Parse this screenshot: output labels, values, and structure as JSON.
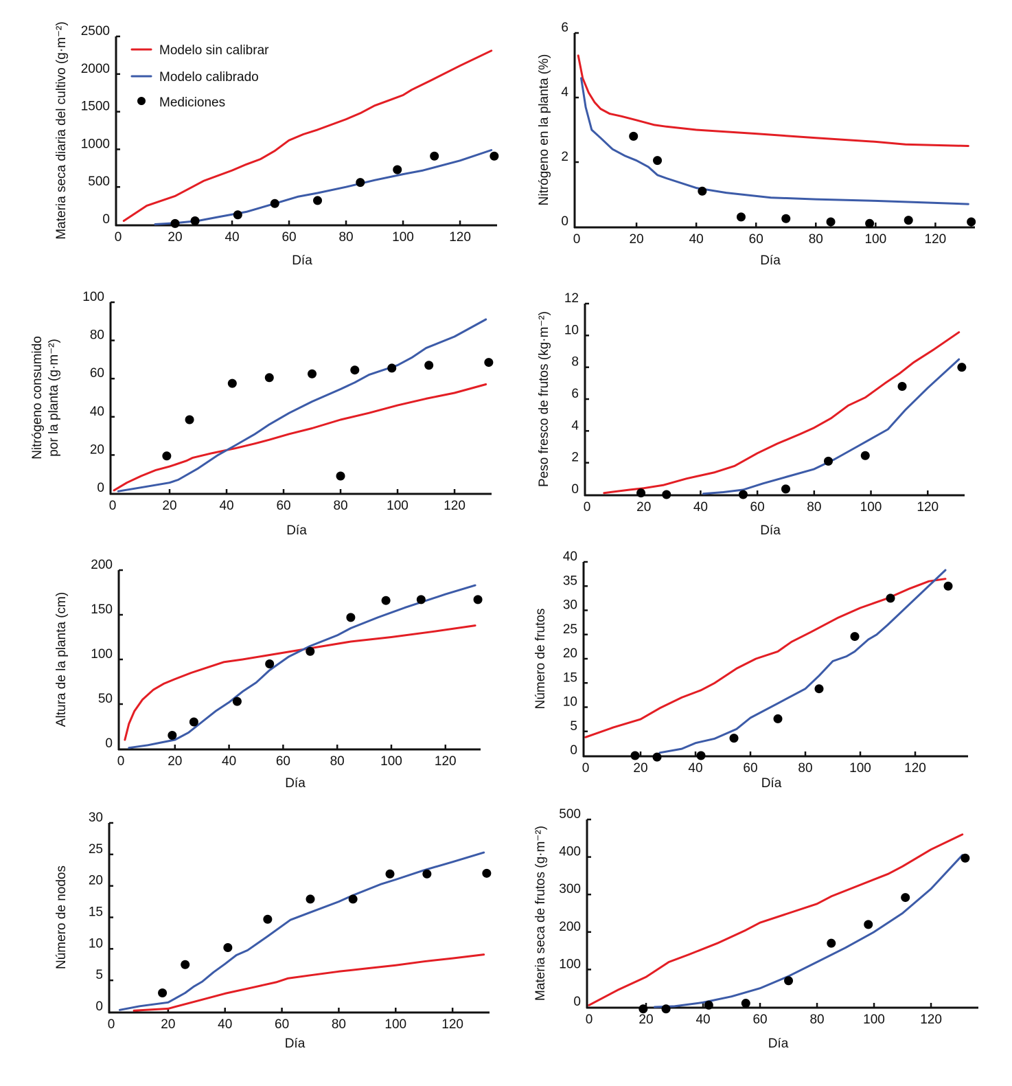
{
  "colors": {
    "uncalibrated": "#e31e24",
    "calibrated": "#3c5ba8",
    "measurements": "#000000"
  },
  "legend": {
    "position": "top-left of first panel",
    "items": [
      {
        "key": "uncalibrated",
        "label": "Modelo sin calibrar",
        "kind": "line"
      },
      {
        "key": "calibrated",
        "label": "Modelo calibrado",
        "kind": "line"
      },
      {
        "key": "measurements",
        "label": "Mediciones",
        "kind": "point"
      }
    ]
  },
  "chart_data": [
    {
      "id": "materia-seca-cultivo",
      "type": "line",
      "title": "",
      "xlabel": "Día",
      "ylabel": "Materia seca diaria del cultivo (g·m⁻²)",
      "xlim": [
        0,
        133
      ],
      "ylim": [
        0,
        2500
      ],
      "xticks": [
        0,
        20,
        40,
        60,
        80,
        100,
        120
      ],
      "yticks": [
        0,
        500,
        1000,
        1500,
        2000,
        2500
      ],
      "series": [
        {
          "name": "Modelo sin calibrar",
          "key": "uncalibrated",
          "x": [
            2,
            10,
            20,
            25,
            30,
            40,
            45,
            50,
            55,
            60,
            65,
            70,
            80,
            85,
            90,
            95,
            100,
            103,
            110,
            120,
            131
          ],
          "y": [
            50,
            250,
            380,
            480,
            580,
            720,
            800,
            870,
            980,
            1120,
            1200,
            1260,
            1400,
            1480,
            1580,
            1650,
            1720,
            1790,
            1920,
            2110,
            2310
          ]
        },
        {
          "name": "Modelo calibrado",
          "key": "calibrated",
          "x": [
            13,
            20,
            28,
            35,
            45,
            55,
            63,
            70,
            80,
            90,
            100,
            107,
            120,
            131
          ],
          "y": [
            5,
            20,
            50,
            100,
            170,
            280,
            370,
            420,
            500,
            590,
            670,
            720,
            850,
            990
          ]
        },
        {
          "name": "Mediciones",
          "key": "measurements",
          "kind": "scatter",
          "x": [
            20,
            27,
            42,
            55,
            70,
            85,
            98,
            111,
            132
          ],
          "y": [
            15,
            50,
            130,
            280,
            320,
            560,
            730,
            910,
            910
          ]
        }
      ]
    },
    {
      "id": "nitrogeno-planta",
      "type": "line",
      "title": "",
      "xlabel": "Día",
      "ylabel": "Nitrógeno en la planta (%)",
      "xlim": [
        0,
        133
      ],
      "ylim": [
        0,
        6
      ],
      "xticks": [
        0,
        20,
        40,
        60,
        80,
        100,
        120
      ],
      "yticks": [
        0,
        2,
        4,
        6
      ],
      "series": [
        {
          "name": "Modelo sin calibrar",
          "key": "uncalibrated",
          "x": [
            0.5,
            2,
            4,
            6,
            8,
            11,
            15,
            20,
            26,
            30,
            40,
            60,
            80,
            100,
            110,
            131
          ],
          "y": [
            5.3,
            4.6,
            4.15,
            3.85,
            3.65,
            3.5,
            3.42,
            3.3,
            3.15,
            3.1,
            3.0,
            2.88,
            2.75,
            2.63,
            2.55,
            2.5
          ]
        },
        {
          "name": "Modelo calibrado",
          "key": "calibrated",
          "x": [
            1.5,
            3,
            5,
            8,
            12,
            16,
            20,
            24,
            27,
            30,
            40,
            50,
            65,
            80,
            100,
            131
          ],
          "y": [
            4.6,
            3.7,
            3.0,
            2.75,
            2.4,
            2.2,
            2.05,
            1.85,
            1.6,
            1.5,
            1.2,
            1.05,
            0.9,
            0.85,
            0.8,
            0.7
          ]
        },
        {
          "name": "Mediciones",
          "key": "measurements",
          "kind": "scatter",
          "x": [
            19,
            27,
            42,
            55,
            70,
            85,
            98,
            111,
            132
          ],
          "y": [
            2.8,
            2.05,
            1.1,
            0.3,
            0.25,
            0.15,
            0.1,
            0.2,
            0.15
          ]
        }
      ]
    },
    {
      "id": "nitrogeno-consumido",
      "type": "line",
      "title": "",
      "xlabel": "Día",
      "ylabel": [
        "Nitrógeno consumido",
        "por la planta (g·m⁻²)"
      ],
      "xlim": [
        0,
        133
      ],
      "ylim": [
        0,
        100
      ],
      "xticks": [
        0,
        20,
        40,
        60,
        80,
        100,
        120
      ],
      "yticks": [
        0,
        20,
        40,
        60,
        80,
        100
      ],
      "series": [
        {
          "name": "Modelo sin calibrar",
          "key": "uncalibrated",
          "x": [
            0.5,
            5,
            10,
            15,
            20,
            26,
            28,
            35,
            43,
            50,
            55,
            62,
            70,
            80,
            90,
            100,
            110,
            120,
            131
          ],
          "y": [
            1.5,
            5.5,
            9,
            12,
            14,
            17,
            18.5,
            21,
            23.5,
            26,
            28,
            31,
            34,
            38.5,
            42,
            46,
            49.5,
            52.5,
            57
          ]
        },
        {
          "name": "Modelo calibrado",
          "key": "calibrated",
          "x": [
            2,
            10,
            20,
            23,
            30,
            37,
            43,
            50,
            55,
            62,
            70,
            80,
            85,
            90,
            100,
            105,
            110,
            120,
            131
          ],
          "y": [
            1,
            3,
            5.5,
            7,
            13,
            20,
            25,
            31,
            36,
            42,
            48,
            54.5,
            58,
            62,
            67,
            71,
            76,
            82,
            91
          ]
        },
        {
          "name": "Mediciones",
          "key": "measurements",
          "kind": "scatter",
          "x": [
            19,
            27,
            42,
            55,
            70,
            80,
            85,
            98,
            111,
            132
          ],
          "y": [
            19.5,
            38.5,
            57.5,
            60.5,
            62.5,
            9,
            64.5,
            65.5,
            67,
            68.5
          ]
        }
      ]
    },
    {
      "id": "peso-fresco-frutos",
      "type": "line",
      "title": "",
      "xlabel": "Día",
      "ylabel": "Peso fresco de frutos (kg·m⁻²)",
      "xlim": [
        0,
        133
      ],
      "ylim": [
        0,
        12
      ],
      "xticks": [
        0,
        20,
        40,
        60,
        80,
        100,
        120
      ],
      "yticks": [
        0,
        2,
        4,
        6,
        8,
        10,
        12
      ],
      "series": [
        {
          "name": "Modelo sin calibrar",
          "key": "uncalibrated",
          "x": [
            6,
            15,
            20,
            27,
            35,
            45,
            52,
            60,
            67,
            75,
            80,
            86,
            92,
            98,
            105,
            110,
            115,
            122,
            131
          ],
          "y": [
            0.1,
            0.3,
            0.4,
            0.6,
            1.0,
            1.4,
            1.8,
            2.6,
            3.2,
            3.8,
            4.2,
            4.8,
            5.6,
            6.1,
            7.0,
            7.6,
            8.3,
            9.1,
            10.2
          ]
        },
        {
          "name": "Modelo calibrado",
          "key": "calibrated",
          "x": [
            41,
            48,
            55,
            62,
            70,
            80,
            87,
            95,
            100,
            106,
            112,
            120,
            131
          ],
          "y": [
            0.05,
            0.15,
            0.3,
            0.7,
            1.1,
            1.6,
            2.2,
            3.0,
            3.5,
            4.1,
            5.3,
            6.7,
            8.5
          ]
        },
        {
          "name": "Mediciones",
          "key": "measurements",
          "kind": "scatter",
          "x": [
            19,
            28,
            55,
            70,
            85,
            98,
            111,
            132
          ],
          "y": [
            0.1,
            0.0,
            0.0,
            0.35,
            2.1,
            2.45,
            6.8,
            8.0
          ]
        }
      ]
    },
    {
      "id": "altura-planta",
      "type": "line",
      "title": "",
      "xlabel": "Día",
      "ylabel": "Altura de la planta (cm)",
      "xlim": [
        0,
        133
      ],
      "ylim": [
        0,
        200
      ],
      "xticks": [
        0,
        20,
        40,
        60,
        80,
        100,
        120
      ],
      "yticks": [
        0,
        50,
        100,
        150,
        200
      ],
      "series": [
        {
          "name": "Modelo sin calibrar",
          "key": "uncalibrated",
          "x": [
            1.5,
            3,
            5,
            8,
            12,
            16,
            20,
            26,
            32,
            38,
            45,
            55,
            65,
            75,
            85,
            100,
            115,
            131
          ],
          "y": [
            10,
            28,
            42,
            55,
            66,
            73,
            78,
            85,
            91,
            97,
            100,
            105,
            110,
            115,
            120,
            125,
            131,
            138
          ]
        },
        {
          "name": "Modelo calibrado",
          "key": "calibrated",
          "x": [
            3,
            10,
            15,
            20,
            25,
            30,
            35,
            40,
            45,
            50,
            55,
            62,
            70,
            80,
            85,
            95,
            105,
            120,
            131
          ],
          "y": [
            1,
            4,
            7,
            10,
            18,
            30,
            42,
            52,
            64,
            74,
            88,
            103,
            115,
            127,
            135,
            147,
            158,
            173,
            183
          ]
        },
        {
          "name": "Mediciones",
          "key": "measurements",
          "kind": "scatter",
          "x": [
            19,
            27,
            43,
            55,
            70,
            85,
            98,
            111,
            132
          ],
          "y": [
            15,
            30,
            53,
            95,
            109,
            147,
            166,
            167,
            167
          ]
        }
      ]
    },
    {
      "id": "numero-frutos",
      "type": "line",
      "title": "",
      "xlabel": "Día",
      "ylabel": "Número de frutos",
      "xlim": [
        0,
        140
      ],
      "ylim": [
        0,
        40
      ],
      "xticks": [
        0,
        20,
        40,
        60,
        80,
        100,
        120
      ],
      "yticks": [
        0,
        5,
        10,
        15,
        20,
        25,
        30,
        35,
        40
      ],
      "series": [
        {
          "name": "Modelo sin calibrar",
          "key": "uncalibrated",
          "x": [
            0,
            10,
            20,
            27,
            35,
            42,
            47,
            55,
            62,
            70,
            75,
            82,
            92,
            100,
            110,
            118,
            125,
            131
          ],
          "y": [
            3.8,
            5.8,
            7.5,
            9.8,
            12,
            13.5,
            15,
            18,
            20,
            21.5,
            23.5,
            25.5,
            28.5,
            30.5,
            32.5,
            34.5,
            36,
            36.5
          ]
        },
        {
          "name": "Modelo calibrado",
          "key": "calibrated",
          "x": [
            27,
            35,
            40,
            47,
            55,
            60,
            70,
            80,
            85,
            90,
            95,
            98,
            103,
            106,
            110,
            131
          ],
          "y": [
            0.6,
            1.4,
            2.6,
            3.5,
            5.5,
            7.8,
            10.8,
            13.8,
            16.5,
            19.5,
            20.5,
            21.5,
            24,
            25,
            27,
            38.3
          ]
        },
        {
          "name": "Mediciones",
          "key": "measurements",
          "kind": "scatter",
          "x": [
            18,
            26,
            42,
            54,
            70,
            85,
            98,
            111,
            132
          ],
          "y": [
            0.0,
            -0.3,
            0.0,
            3.6,
            7.6,
            13.8,
            24.6,
            32.5,
            35
          ]
        }
      ]
    },
    {
      "id": "numero-nodos",
      "type": "line",
      "title": "",
      "xlabel": "Día",
      "ylabel": "Número de nodos",
      "xlim": [
        0,
        133
      ],
      "ylim": [
        0,
        30
      ],
      "xticks": [
        0,
        20,
        40,
        60,
        80,
        100,
        120
      ],
      "yticks": [
        0,
        5,
        10,
        15,
        20,
        25,
        30
      ],
      "series": [
        {
          "name": "Modelo sin calibrar",
          "key": "uncalibrated",
          "x": [
            8,
            20,
            30,
            40,
            50,
            58,
            62,
            70,
            80,
            90,
            100,
            110,
            120,
            131
          ],
          "y": [
            0.2,
            0.5,
            1.7,
            2.9,
            3.9,
            4.7,
            5.3,
            5.8,
            6.4,
            6.9,
            7.4,
            8.0,
            8.5,
            9.1
          ]
        },
        {
          "name": "Modelo calibrado",
          "key": "calibrated",
          "x": [
            3,
            10,
            20,
            26,
            29,
            32,
            36,
            40,
            44,
            48,
            55,
            63,
            70,
            80,
            85,
            95,
            100,
            110,
            120,
            131
          ],
          "y": [
            0.3,
            0.9,
            1.5,
            3.0,
            4.0,
            4.8,
            6.3,
            7.6,
            9.0,
            9.8,
            12,
            14.6,
            15.8,
            17.5,
            18.5,
            20.3,
            21,
            22.5,
            23.8,
            25.3
          ]
        },
        {
          "name": "Mediciones",
          "key": "measurements",
          "kind": "scatter",
          "x": [
            18,
            26,
            41,
            55,
            70,
            85,
            98,
            111,
            132
          ],
          "y": [
            3,
            7.5,
            10.2,
            14.7,
            17.9,
            17.9,
            21.9,
            21.9,
            22
          ]
        }
      ]
    },
    {
      "id": "materia-seca-frutos",
      "type": "line",
      "title": "",
      "xlabel": "Día",
      "ylabel": "Materia seca de frutos (g·m⁻²)",
      "xlim": [
        0,
        133
      ],
      "ylim": [
        0,
        500
      ],
      "xticks": [
        0,
        20,
        40,
        60,
        80,
        100,
        120
      ],
      "yticks": [
        0,
        100,
        200,
        300,
        400,
        500
      ],
      "series": [
        {
          "name": "Modelo sin calibrar",
          "key": "uncalibrated",
          "x": [
            0,
            10,
            20,
            28,
            35,
            45,
            55,
            60,
            70,
            80,
            85,
            95,
            105,
            110,
            120,
            131
          ],
          "y": [
            5,
            45,
            80,
            120,
            140,
            170,
            205,
            225,
            250,
            275,
            295,
            325,
            355,
            375,
            420,
            460
          ]
        },
        {
          "name": "Modelo calibrado",
          "key": "calibrated",
          "x": [
            23,
            30,
            40,
            50,
            60,
            70,
            80,
            90,
            100,
            110,
            120,
            131
          ],
          "y": [
            0,
            2,
            12,
            28,
            50,
            82,
            120,
            158,
            200,
            250,
            315,
            405
          ]
        },
        {
          "name": "Mediciones",
          "key": "measurements",
          "kind": "scatter",
          "x": [
            19,
            27,
            42,
            55,
            70,
            85,
            98,
            111,
            132
          ],
          "y": [
            -5,
            -5,
            5,
            10,
            70,
            170,
            220,
            292,
            397
          ]
        }
      ]
    }
  ]
}
